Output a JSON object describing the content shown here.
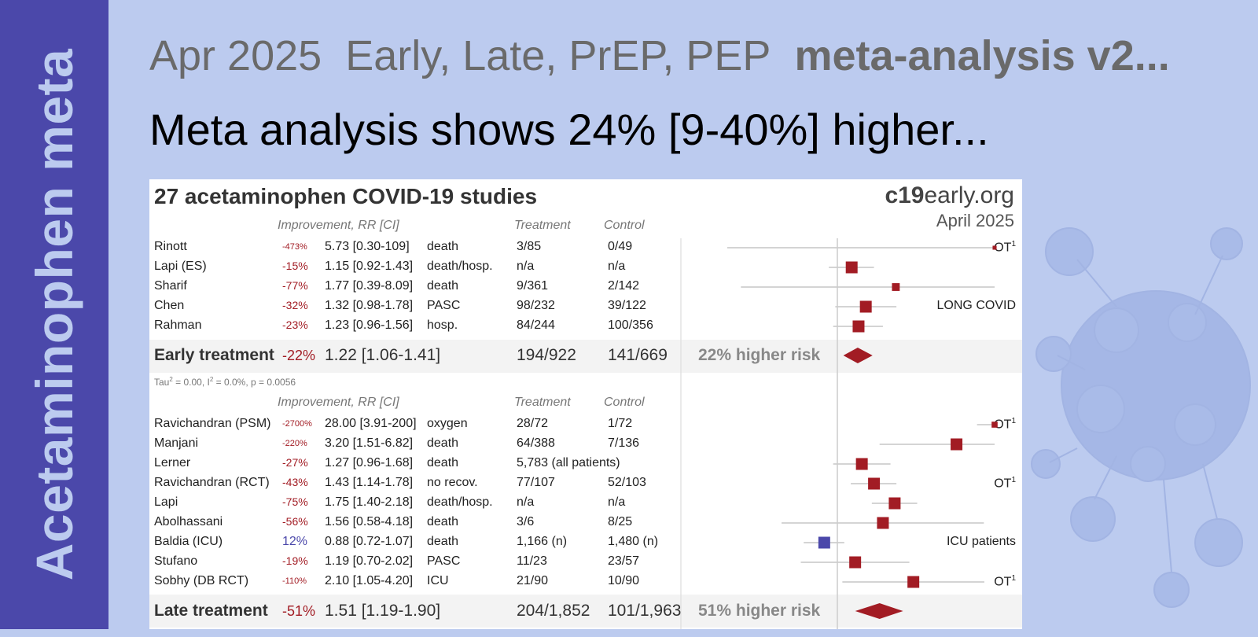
{
  "sidebar": {
    "title": "Acetaminophen meta"
  },
  "headline": {
    "date": "Apr 2025",
    "scope": "Early, Late, PrEP, PEP",
    "kind": "meta-analysis v2...",
    "summary": "Meta analysis shows 24% [9-40%] higher..."
  },
  "panel": {
    "title": "27 acetaminophen COVID-19 studies",
    "site_bold": "c19",
    "site_rest": "early.org",
    "date": "April 2025",
    "headers": {
      "improvement": "Improvement, RR [CI]",
      "treatment": "Treatment",
      "control": "Control"
    }
  },
  "chart_data": {
    "type": "forest",
    "scale": "log",
    "x_reference": 1,
    "early": {
      "studies": [
        {
          "name": "Rinott",
          "improvement": "-473%",
          "rr": 5.73,
          "ci": [
            0.3,
            109
          ],
          "rr_text": "5.73 [0.30-109]",
          "outcome": "death",
          "treatment": "3/85",
          "control": "0/49",
          "note": "OT",
          "note_sup": "1"
        },
        {
          "name": "Lapi (ES)",
          "improvement": "-15%",
          "rr": 1.15,
          "ci": [
            0.92,
            1.43
          ],
          "rr_text": "1.15 [0.92-1.43]",
          "outcome": "death/hosp.",
          "treatment": "n/a",
          "control": "n/a"
        },
        {
          "name": "Sharif",
          "improvement": "-77%",
          "rr": 1.77,
          "ci": [
            0.39,
            8.09
          ],
          "rr_text": "1.77 [0.39-8.09]",
          "outcome": "death",
          "treatment": "9/361",
          "control": "2/142"
        },
        {
          "name": "Chen",
          "improvement": "-32%",
          "rr": 1.32,
          "ci": [
            0.98,
            1.78
          ],
          "rr_text": "1.32 [0.98-1.78]",
          "outcome": "PASC",
          "treatment": "98/232",
          "control": "39/122",
          "note": "LONG COVID"
        },
        {
          "name": "Rahman",
          "improvement": "-23%",
          "rr": 1.23,
          "ci": [
            0.96,
            1.56
          ],
          "rr_text": "1.23 [0.96-1.56]",
          "outcome": "hosp.",
          "treatment": "84/244",
          "control": "100/356"
        }
      ],
      "summary": {
        "name": "Early treatment",
        "improvement": "-22%",
        "rr": 1.22,
        "ci": [
          1.06,
          1.41
        ],
        "rr_text": "1.22 [1.06-1.41]",
        "treatment": "194/922",
        "control": "141/669",
        "risk": "22% higher risk"
      },
      "stats": {
        "tau_label": "Tau",
        "tau_rest": " = 0.00, I",
        "i_rest": " = 0.0%, p = 0.0056"
      }
    },
    "late": {
      "studies": [
        {
          "name": "Ravichandran (PSM)",
          "improvement": "-2700%",
          "rr": 28.0,
          "ci": [
            3.91,
            200
          ],
          "rr_text": "28.00 [3.91-200]",
          "outcome": "oxygen",
          "treatment": "28/72",
          "control": "1/72",
          "note": "OT",
          "note_sup": "1"
        },
        {
          "name": "Manjani",
          "improvement": "-220%",
          "rr": 3.2,
          "ci": [
            1.51,
            6.82
          ],
          "rr_text": "3.20 [1.51-6.82]",
          "outcome": "death",
          "treatment": "64/388",
          "control": "7/136"
        },
        {
          "name": "Lerner",
          "improvement": "-27%",
          "rr": 1.27,
          "ci": [
            0.96,
            1.68
          ],
          "rr_text": "1.27 [0.96-1.68]",
          "outcome": "death",
          "treatment": "5,783 (all patients)",
          "control": ""
        },
        {
          "name": "Ravichandran (RCT)",
          "improvement": "-43%",
          "rr": 1.43,
          "ci": [
            1.14,
            1.78
          ],
          "rr_text": "1.43 [1.14-1.78]",
          "outcome": "no recov.",
          "treatment": "77/107",
          "control": "52/103",
          "note": "OT",
          "note_sup": "1"
        },
        {
          "name": "Lapi",
          "improvement": "-75%",
          "rr": 1.75,
          "ci": [
            1.4,
            2.18
          ],
          "rr_text": "1.75 [1.40-2.18]",
          "outcome": "death/hosp.",
          "treatment": "n/a",
          "control": "n/a"
        },
        {
          "name": "Abolhassani",
          "improvement": "-56%",
          "rr": 1.56,
          "ci": [
            0.58,
            4.18
          ],
          "rr_text": "1.56 [0.58-4.18]",
          "outcome": "death",
          "treatment": "3/6",
          "control": "8/25"
        },
        {
          "name": "Baldia (ICU)",
          "improvement": "12%",
          "rr": 0.88,
          "ci": [
            0.72,
            1.07
          ],
          "rr_text": "0.88 [0.72-1.07]",
          "outcome": "death",
          "treatment": "1,166 (n)",
          "control": "1,480 (n)",
          "note": "ICU patients"
        },
        {
          "name": "Stufano",
          "improvement": "-19%",
          "rr": 1.19,
          "ci": [
            0.7,
            2.02
          ],
          "rr_text": "1.19 [0.70-2.02]",
          "outcome": "PASC",
          "treatment": "11/23",
          "control": "23/57"
        },
        {
          "name": "Sobhy (DB RCT)",
          "improvement": "-110%",
          "rr": 2.1,
          "ci": [
            1.05,
            4.2
          ],
          "rr_text": "2.10 [1.05-4.20]",
          "outcome": "ICU",
          "treatment": "21/90",
          "control": "10/90",
          "note": "OT",
          "note_sup": "1"
        }
      ],
      "summary": {
        "name": "Late treatment",
        "improvement": "-51%",
        "rr": 1.51,
        "ci": [
          1.19,
          1.9
        ],
        "rr_text": "1.51 [1.19-1.90]",
        "treatment": "204/1,852",
        "control": "101/1,963",
        "risk": "51% higher risk"
      }
    }
  },
  "colors": {
    "sidebar": "#4b48aa",
    "background": "#bccbef",
    "harm": "#a21c24",
    "benefit": "#4b48aa"
  }
}
